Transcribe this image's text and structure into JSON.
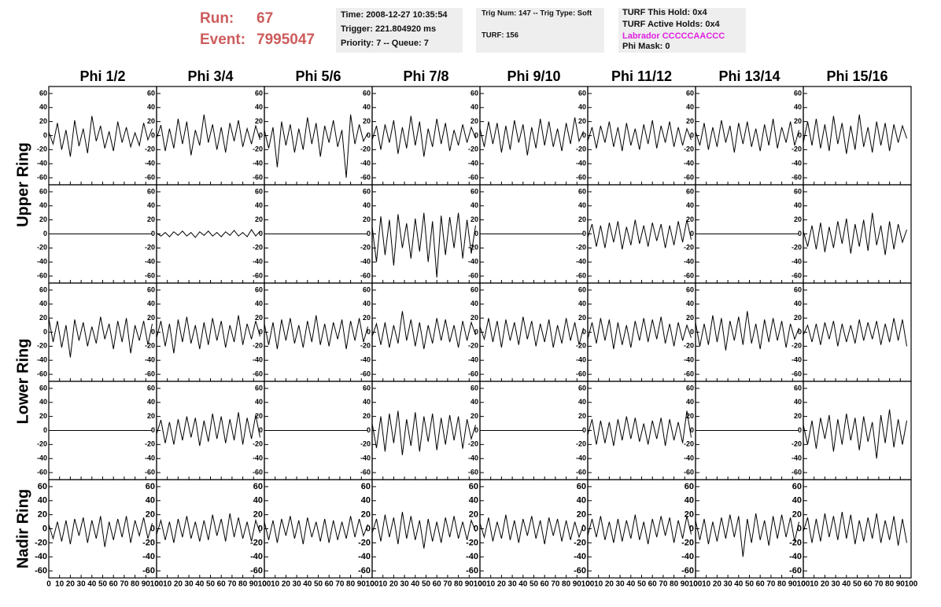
{
  "header": {
    "run_label": "Run:",
    "run": 67,
    "event_label": "Event:",
    "event": 7995047,
    "boxes": [
      [
        "Time: 2008-12-27 10:35:54",
        "Trigger: 221.804920 ms",
        "Priority: 7 -- Queue: 7"
      ],
      [
        "Trig Num: 147 -- Trig Type: Soft",
        "TURF: 156"
      ],
      [
        "TURF This Hold: 0x4",
        "TURF Active Holds: 0x4",
        "Labrador CCCCCAACCC",
        "Phi Mask: 0"
      ]
    ]
  },
  "chart_data": {
    "type": "line",
    "color": "#000000",
    "columns": [
      "Phi 1/2",
      "Phi 3/4",
      "Phi 5/6",
      "Phi 7/8",
      "Phi 9/10",
      "Phi 11/12",
      "Phi 13/14",
      "Phi 15/16"
    ],
    "ring_labels": [
      "Upper Ring",
      "Lower Ring",
      "Nadir Ring"
    ],
    "xlim": [
      0,
      100
    ],
    "xticks": [
      0,
      10,
      20,
      30,
      40,
      50,
      60,
      70,
      80,
      90,
      100
    ],
    "ylim": [
      -70,
      70
    ],
    "yticks": [
      -60,
      -40,
      -20,
      0,
      20,
      40,
      60
    ],
    "x": [
      0,
      4,
      8,
      12,
      16,
      20,
      24,
      28,
      32,
      36,
      40,
      44,
      48,
      52,
      56,
      60,
      64,
      68,
      72,
      76,
      80,
      84,
      88,
      92,
      96
    ],
    "panels": [
      [
        [
          5,
          -12,
          18,
          -20,
          8,
          -30,
          22,
          -15,
          10,
          -25,
          28,
          -8,
          14,
          -18,
          6,
          -22,
          20,
          -10,
          12,
          -16,
          4,
          -14,
          18,
          -6,
          10
        ],
        [
          -4,
          15,
          -22,
          10,
          -18,
          24,
          -12,
          20,
          -28,
          8,
          -14,
          30,
          -10,
          16,
          -20,
          12,
          -24,
          18,
          -8,
          22,
          -16,
          10,
          -12,
          14,
          -6
        ],
        [
          8,
          -18,
          12,
          -45,
          20,
          -14,
          16,
          -24,
          10,
          -20,
          26,
          -12,
          18,
          -30,
          14,
          -10,
          22,
          -16,
          8,
          -60,
          30,
          -12,
          16,
          -8,
          4
        ],
        [
          -6,
          14,
          -20,
          16,
          -10,
          22,
          -26,
          12,
          -18,
          28,
          -14,
          20,
          -30,
          10,
          -16,
          24,
          -12,
          18,
          -22,
          8,
          -14,
          16,
          -10,
          12,
          -4
        ],
        [
          10,
          -16,
          20,
          -12,
          18,
          -24,
          14,
          -20,
          22,
          -10,
          16,
          -28,
          12,
          -18,
          24,
          -14,
          20,
          -16,
          10,
          -22,
          18,
          -12,
          26,
          -8,
          6
        ],
        [
          -8,
          12,
          -18,
          14,
          -10,
          20,
          -16,
          12,
          -22,
          18,
          -14,
          10,
          -20,
          16,
          -12,
          22,
          -18,
          14,
          -10,
          20,
          -16,
          12,
          -14,
          10,
          -6
        ],
        [
          6,
          -14,
          18,
          -20,
          12,
          -16,
          22,
          -10,
          14,
          -24,
          18,
          -12,
          20,
          -16,
          10,
          -22,
          16,
          -14,
          24,
          -18,
          12,
          -10,
          20,
          -14,
          8
        ],
        [
          -10,
          20,
          -14,
          24,
          -18,
          16,
          -22,
          28,
          -12,
          18,
          -26,
          14,
          -20,
          30,
          -16,
          12,
          -24,
          20,
          -14,
          18,
          -22,
          16,
          -10,
          14,
          -4
        ]
      ],
      [
        [
          0,
          0,
          0,
          0,
          0,
          0,
          0,
          0,
          0,
          0,
          0,
          0,
          0,
          0,
          0,
          0,
          0,
          0,
          0,
          0,
          0,
          0,
          0,
          0,
          0
        ],
        [
          1,
          -3,
          2,
          -4,
          3,
          -2,
          4,
          -3,
          2,
          -5,
          3,
          -2,
          4,
          -3,
          2,
          -4,
          3,
          -2,
          5,
          -3,
          2,
          -4,
          6,
          -3,
          4
        ],
        [
          0,
          0,
          0,
          0,
          0,
          0,
          0,
          0,
          0,
          0,
          0,
          0,
          0,
          0,
          0,
          0,
          0,
          0,
          0,
          0,
          0,
          0,
          0,
          0,
          0
        ],
        [
          10,
          -40,
          25,
          -30,
          20,
          -45,
          28,
          -20,
          15,
          -35,
          22,
          -25,
          30,
          -40,
          18,
          -62,
          26,
          -30,
          24,
          -20,
          30,
          -35,
          20,
          -28,
          12
        ],
        [
          0,
          0,
          0,
          0,
          0,
          0,
          0,
          0,
          0,
          0,
          0,
          0,
          0,
          0,
          0,
          0,
          0,
          0,
          0,
          0,
          0,
          0,
          0,
          0,
          0
        ],
        [
          -5,
          14,
          -18,
          12,
          -20,
          16,
          -12,
          18,
          -22,
          10,
          -16,
          20,
          -14,
          12,
          -18,
          16,
          -10,
          14,
          -20,
          12,
          -16,
          18,
          -12,
          20,
          -8
        ],
        [
          0,
          0,
          0,
          0,
          0,
          0,
          0,
          0,
          0,
          0,
          0,
          0,
          0,
          0,
          0,
          0,
          0,
          0,
          0,
          0,
          0,
          0,
          0,
          0,
          0
        ],
        [
          4,
          -18,
          12,
          -22,
          16,
          -26,
          10,
          -20,
          18,
          -14,
          22,
          -28,
          14,
          -18,
          20,
          -24,
          30,
          -16,
          12,
          -30,
          18,
          -22,
          14,
          -12,
          6
        ]
      ],
      [
        [
          20,
          -14,
          16,
          -22,
          10,
          -36,
          18,
          -12,
          14,
          -20,
          8,
          -16,
          22,
          -10,
          12,
          -24,
          16,
          -14,
          20,
          -30,
          10,
          -12,
          16,
          -18,
          12
        ],
        [
          -8,
          16,
          -20,
          12,
          -30,
          18,
          -14,
          22,
          -16,
          10,
          -24,
          14,
          -18,
          20,
          -12,
          16,
          -22,
          10,
          -14,
          24,
          -18,
          12,
          -10,
          16,
          -6
        ],
        [
          12,
          -18,
          14,
          -24,
          18,
          -12,
          20,
          -16,
          10,
          -22,
          16,
          -14,
          24,
          -18,
          12,
          -20,
          14,
          -10,
          18,
          -24,
          16,
          -12,
          20,
          -14,
          8
        ],
        [
          -6,
          12,
          -18,
          14,
          -22,
          10,
          -16,
          30,
          -12,
          18,
          -20,
          14,
          -24,
          10,
          -16,
          20,
          -12,
          18,
          -14,
          10,
          -22,
          16,
          -12,
          14,
          -4
        ],
        [
          8,
          -10,
          20,
          -14,
          16,
          -22,
          18,
          -12,
          14,
          -18,
          22,
          -10,
          16,
          -20,
          12,
          -14,
          18,
          -22,
          10,
          -16,
          20,
          -12,
          14,
          -18,
          6
        ],
        [
          -10,
          14,
          -16,
          20,
          -12,
          18,
          -24,
          14,
          -18,
          10,
          -22,
          16,
          -12,
          20,
          -14,
          18,
          -10,
          22,
          -16,
          12,
          -20,
          14,
          -12,
          10,
          -8
        ],
        [
          14,
          -20,
          12,
          -18,
          24,
          -14,
          20,
          -26,
          16,
          -12,
          22,
          -18,
          30,
          -16,
          12,
          -24,
          18,
          -14,
          20,
          -12,
          16,
          -22,
          12,
          -10,
          6
        ],
        [
          -4,
          10,
          -14,
          12,
          -18,
          14,
          -10,
          16,
          -20,
          12,
          -14,
          10,
          -16,
          18,
          -12,
          14,
          -10,
          16,
          -18,
          12,
          -14,
          20,
          -12,
          18,
          -20
        ]
      ],
      [
        [
          0,
          0,
          0,
          0,
          0,
          0,
          0,
          0,
          0,
          0,
          0,
          0,
          0,
          0,
          0,
          0,
          0,
          0,
          0,
          0,
          0,
          0,
          0,
          0,
          0
        ],
        [
          -5,
          15,
          -18,
          12,
          -20,
          16,
          -14,
          20,
          -10,
          18,
          -22,
          14,
          -16,
          24,
          -12,
          20,
          -18,
          16,
          -14,
          26,
          -20,
          18,
          -12,
          22,
          -10
        ],
        [
          0,
          0,
          0,
          0,
          0,
          0,
          0,
          0,
          0,
          0,
          0,
          0,
          0,
          0,
          0,
          0,
          0,
          0,
          0,
          0,
          0,
          0,
          0,
          0,
          0
        ],
        [
          10,
          -25,
          20,
          -30,
          24,
          -18,
          28,
          -35,
          16,
          -22,
          26,
          -30,
          20,
          -16,
          24,
          -28,
          18,
          -20,
          22,
          -14,
          20,
          -26,
          16,
          -12,
          8
        ],
        [
          0,
          0,
          0,
          0,
          0,
          0,
          0,
          0,
          0,
          0,
          0,
          0,
          0,
          0,
          0,
          0,
          0,
          0,
          0,
          0,
          0,
          0,
          0,
          0,
          0
        ],
        [
          -6,
          16,
          -20,
          14,
          -18,
          12,
          -22,
          16,
          -14,
          20,
          -12,
          18,
          -16,
          10,
          -20,
          14,
          -12,
          18,
          -22,
          16,
          -14,
          12,
          -18,
          28,
          -10
        ],
        [
          0,
          0,
          0,
          0,
          0,
          0,
          0,
          0,
          0,
          0,
          0,
          0,
          0,
          0,
          0,
          0,
          0,
          0,
          0,
          0,
          0,
          0,
          0,
          0,
          0
        ],
        [
          8,
          -20,
          14,
          -26,
          18,
          -12,
          22,
          -30,
          16,
          -20,
          24,
          -14,
          18,
          -28,
          20,
          -16,
          12,
          -40,
          22,
          -18,
          30,
          -24,
          16,
          -20,
          14
        ]
      ],
      [
        [
          6,
          -14,
          10,
          -18,
          12,
          -22,
          14,
          -10,
          16,
          -20,
          12,
          -14,
          18,
          -26,
          10,
          -16,
          14,
          -12,
          18,
          -20,
          12,
          -10,
          16,
          -14,
          8
        ],
        [
          -8,
          12,
          -16,
          10,
          -20,
          14,
          -12,
          18,
          -14,
          10,
          -18,
          12,
          -16,
          20,
          -10,
          14,
          -18,
          22,
          -12,
          16,
          -14,
          10,
          -18,
          12,
          -6
        ],
        [
          10,
          -16,
          12,
          -20,
          14,
          -10,
          18,
          -14,
          12,
          -22,
          16,
          -12,
          10,
          -18,
          14,
          -20,
          12,
          -16,
          10,
          -14,
          18,
          -12,
          14,
          -10,
          6
        ],
        [
          -6,
          14,
          -18,
          20,
          -12,
          16,
          -22,
          24,
          -14,
          18,
          -16,
          12,
          -28,
          14,
          -18,
          10,
          -20,
          16,
          -12,
          18,
          -14,
          10,
          -16,
          12,
          -4
        ],
        [
          8,
          -12,
          16,
          -18,
          10,
          -14,
          20,
          -16,
          12,
          -20,
          14,
          -10,
          18,
          -14,
          12,
          -22,
          16,
          -10,
          14,
          -18,
          12,
          -16,
          10,
          -12,
          6
        ],
        [
          -10,
          14,
          -12,
          18,
          -16,
          10,
          -20,
          14,
          -18,
          12,
          -14,
          20,
          -16,
          10,
          -22,
          14,
          -12,
          18,
          -10,
          16,
          -20,
          12,
          -14,
          18,
          -8
        ],
        [
          12,
          -16,
          14,
          -22,
          10,
          -18,
          16,
          -14,
          20,
          -12,
          18,
          -40,
          14,
          -20,
          22,
          -16,
          12,
          -24,
          18,
          -14,
          20,
          -12,
          16,
          -18,
          10
        ],
        [
          -4,
          16,
          -20,
          14,
          -18,
          22,
          -12,
          18,
          -16,
          24,
          -14,
          20,
          -22,
          12,
          -18,
          16,
          -14,
          22,
          -20,
          12,
          -16,
          18,
          -24,
          14,
          -20
        ]
      ]
    ]
  }
}
